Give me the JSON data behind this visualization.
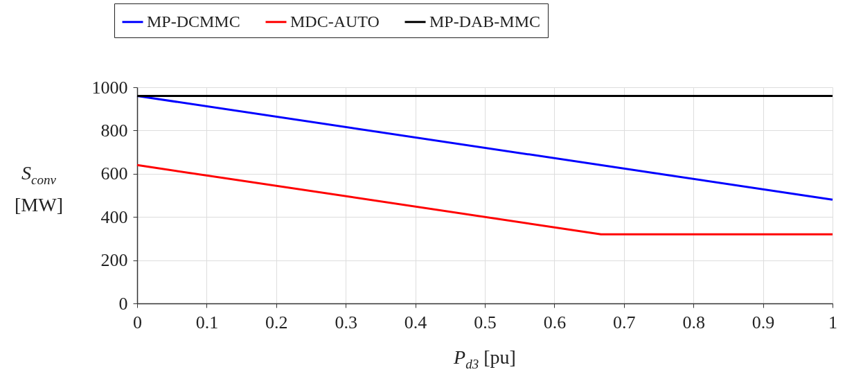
{
  "chart_data": {
    "type": "line",
    "xlabel": "P$_{d3}$ [pu]",
    "ylabel": "S$_{conv}$ [MW]",
    "x": [
      0,
      1
    ],
    "series": [
      {
        "name": "MP-DCMMC",
        "color": "#0000ff",
        "values": [
          960,
          480
        ]
      },
      {
        "name": "MDC-AUTO",
        "color": "#ff0000",
        "x": [
          0,
          0.667,
          1
        ],
        "values": [
          640,
          320,
          320
        ]
      },
      {
        "name": "MP-DAB-MMC",
        "color": "#000000",
        "values": [
          960,
          960
        ]
      }
    ],
    "xlim": [
      0,
      1
    ],
    "xticks": [
      0,
      0.1,
      0.2,
      0.3,
      0.4,
      0.5,
      0.6,
      0.7,
      0.8,
      0.9,
      1
    ],
    "ylim": [
      0,
      1000
    ],
    "yticks": [
      0,
      200,
      400,
      600,
      800,
      1000
    ],
    "grid": true,
    "legend": "top",
    "marker": "none",
    "line_style": "solid"
  }
}
